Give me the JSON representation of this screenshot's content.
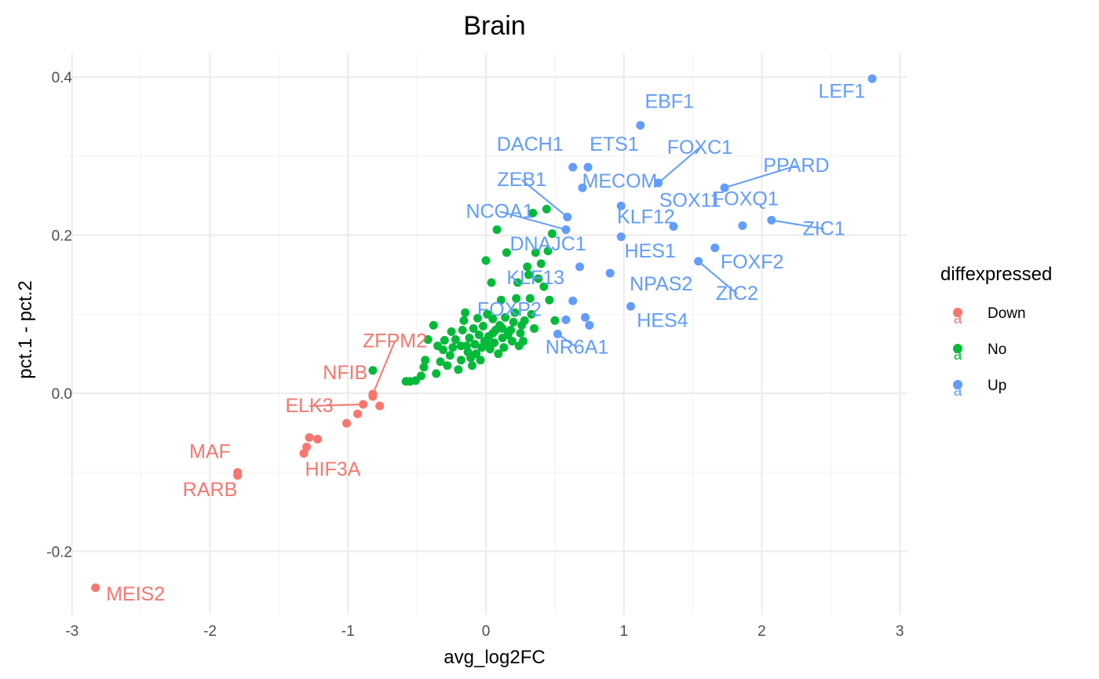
{
  "chart_data": {
    "type": "scatter",
    "title": "Brain",
    "xlabel": "avg_log2FC",
    "ylabel": "pct.1 - pct.2",
    "xlim": [
      -3.05,
      3.05
    ],
    "ylim": [
      -0.28,
      0.43
    ],
    "x_ticks": [
      -3,
      -2,
      -1,
      0,
      1,
      2,
      3
    ],
    "y_ticks": [
      -0.2,
      0.0,
      0.2,
      0.4
    ],
    "x_tick_labels": [
      "-3",
      "-2",
      "-1",
      "0",
      "1",
      "2",
      "3"
    ],
    "y_tick_labels": [
      "-0.2",
      "0.0",
      "0.2",
      "0.4"
    ],
    "grid": true,
    "legend": {
      "title": "diffexpressed",
      "position": "right",
      "entries": [
        {
          "key": "Down",
          "label": "Down",
          "color": "#F8766D"
        },
        {
          "key": "No",
          "label": "No",
          "color": "#00BA38"
        },
        {
          "key": "Up",
          "label": "Up",
          "color": "#619CFF"
        }
      ]
    },
    "series": [
      {
        "name": "Down",
        "color": "#F8766D",
        "points": [
          [
            -2.83,
            -0.246
          ],
          [
            -1.8,
            -0.1
          ],
          [
            -1.8,
            -0.104
          ],
          [
            -1.32,
            -0.076
          ],
          [
            -1.3,
            -0.068
          ],
          [
            -1.28,
            -0.056
          ],
          [
            -1.22,
            -0.058
          ],
          [
            -1.01,
            -0.038
          ],
          [
            -0.93,
            -0.026
          ],
          [
            -0.89,
            -0.014
          ],
          [
            -0.82,
            -0.004
          ],
          [
            -0.82,
            -0.001
          ],
          [
            -0.77,
            -0.016
          ]
        ]
      },
      {
        "name": "No",
        "color": "#00BA38",
        "points": [
          [
            -0.55,
            0.015
          ],
          [
            -0.51,
            0.016
          ],
          [
            -0.47,
            0.022
          ],
          [
            -0.45,
            0.033
          ],
          [
            -0.44,
            0.042
          ],
          [
            -0.42,
            0.068
          ],
          [
            -0.38,
            0.086
          ],
          [
            -0.36,
            0.025
          ],
          [
            -0.33,
            0.04
          ],
          [
            -0.31,
            0.055
          ],
          [
            -0.3,
            0.067
          ],
          [
            -0.28,
            0.035
          ],
          [
            -0.26,
            0.048
          ],
          [
            -0.24,
            0.058
          ],
          [
            -0.22,
            0.068
          ],
          [
            -0.2,
            0.03
          ],
          [
            -0.18,
            0.042
          ],
          [
            -0.17,
            0.08
          ],
          [
            -0.16,
            0.092
          ],
          [
            -0.15,
            0.102
          ],
          [
            -0.14,
            0.06
          ],
          [
            -0.13,
            0.052
          ],
          [
            -0.12,
            0.07
          ],
          [
            -0.11,
            0.045
          ],
          [
            -0.1,
            0.035
          ],
          [
            -0.09,
            0.082
          ],
          [
            -0.08,
            0.062
          ],
          [
            -0.07,
            0.05
          ],
          [
            -0.06,
            0.095
          ],
          [
            -0.05,
            0.074
          ],
          [
            -0.04,
            0.042
          ],
          [
            -0.03,
            0.058
          ],
          [
            -0.02,
            0.085
          ],
          [
            -0.01,
            0.066
          ],
          [
            0.0,
            0.168
          ],
          [
            0.01,
            0.1
          ],
          [
            0.02,
            0.072
          ],
          [
            0.03,
            0.056
          ],
          [
            0.04,
            0.14
          ],
          [
            0.05,
            0.094
          ],
          [
            0.06,
            0.064
          ],
          [
            0.07,
            0.08
          ],
          [
            0.08,
            0.207
          ],
          [
            0.09,
            0.05
          ],
          [
            0.1,
            0.086
          ],
          [
            0.11,
            0.118
          ],
          [
            0.12,
            0.07
          ],
          [
            0.13,
            0.058
          ],
          [
            0.14,
            0.096
          ],
          [
            0.15,
            0.178
          ],
          [
            0.16,
            0.074
          ],
          [
            0.18,
            0.08
          ],
          [
            0.19,
            0.066
          ],
          [
            0.2,
            0.09
          ],
          [
            0.21,
            0.102
          ],
          [
            0.22,
            0.12
          ],
          [
            0.23,
            0.14
          ],
          [
            0.24,
            0.06
          ],
          [
            0.25,
            0.076
          ],
          [
            0.26,
            0.086
          ],
          [
            0.28,
            0.092
          ],
          [
            0.3,
            0.16
          ],
          [
            0.31,
            0.15
          ],
          [
            0.32,
            0.12
          ],
          [
            0.33,
            0.1
          ],
          [
            0.34,
            0.228
          ],
          [
            0.35,
            0.082
          ],
          [
            0.36,
            0.178
          ],
          [
            0.38,
            0.145
          ],
          [
            0.4,
            0.164
          ],
          [
            0.42,
            0.135
          ],
          [
            0.44,
            0.233
          ],
          [
            0.45,
            0.18
          ],
          [
            0.46,
            0.118
          ],
          [
            0.48,
            0.202
          ],
          [
            0.5,
            0.092
          ],
          [
            -0.82,
            0.029
          ],
          [
            -0.58,
            0.015
          ],
          [
            -0.35,
            0.06
          ],
          [
            -0.25,
            0.078
          ],
          [
            -0.18,
            0.06
          ],
          [
            0.0,
            0.064
          ],
          [
            0.05,
            0.076
          ],
          [
            0.12,
            0.082
          ],
          [
            0.27,
            0.066
          ]
        ]
      },
      {
        "name": "Up",
        "color": "#619CFF",
        "points": [
          [
            2.8,
            0.398
          ],
          [
            1.12,
            0.339
          ],
          [
            0.63,
            0.286
          ],
          [
            0.74,
            0.286
          ],
          [
            1.25,
            0.266
          ],
          [
            1.73,
            0.26
          ],
          [
            0.7,
            0.26
          ],
          [
            0.98,
            0.237
          ],
          [
            0.59,
            0.223
          ],
          [
            0.58,
            0.207
          ],
          [
            2.07,
            0.219
          ],
          [
            1.36,
            0.211
          ],
          [
            1.86,
            0.212
          ],
          [
            0.98,
            0.198
          ],
          [
            1.66,
            0.184
          ],
          [
            1.54,
            0.167
          ],
          [
            0.68,
            0.16
          ],
          [
            0.9,
            0.152
          ],
          [
            0.63,
            0.117
          ],
          [
            1.05,
            0.11
          ],
          [
            0.58,
            0.093
          ],
          [
            0.72,
            0.096
          ],
          [
            0.75,
            0.086
          ],
          [
            0.52,
            0.075
          ]
        ]
      }
    ],
    "annotations": [
      {
        "text": "LEF1",
        "series": "Up",
        "x": 2.8,
        "y": 0.398,
        "lx": 2.58,
        "ly": 0.374
      },
      {
        "text": "EBF1",
        "series": "Up",
        "x": 1.12,
        "y": 0.339,
        "lx": 1.33,
        "ly": 0.361
      },
      {
        "text": "DACH1",
        "series": "Up",
        "x": 0.63,
        "y": 0.286,
        "lx": 0.32,
        "ly": 0.307
      },
      {
        "text": "ETS1",
        "series": "Up",
        "x": 0.74,
        "y": 0.286,
        "lx": 0.93,
        "ly": 0.307
      },
      {
        "text": "FOXC1",
        "series": "Up",
        "x": 1.25,
        "y": 0.266,
        "lx": 1.55,
        "ly": 0.303,
        "line": true
      },
      {
        "text": "PPARD",
        "series": "Up",
        "x": 1.73,
        "y": 0.26,
        "lx": 2.25,
        "ly": 0.28,
        "line": true
      },
      {
        "text": "ZEB1",
        "series": "Up",
        "x": 0.59,
        "y": 0.223,
        "lx": 0.26,
        "ly": 0.262,
        "line": true
      },
      {
        "text": "MECOM",
        "series": "Up",
        "x": 0.7,
        "y": 0.26,
        "lx": 0.97,
        "ly": 0.26
      },
      {
        "text": "SOX11",
        "series": "Up",
        "x": 1.36,
        "y": 0.211,
        "lx": 1.48,
        "ly": 0.236
      },
      {
        "text": "FOXQ1",
        "series": "Up",
        "x": 1.86,
        "y": 0.212,
        "lx": 1.88,
        "ly": 0.238
      },
      {
        "text": "NCOA1",
        "series": "Up",
        "x": 0.58,
        "y": 0.207,
        "lx": 0.1,
        "ly": 0.222,
        "line": true
      },
      {
        "text": "KLF12",
        "series": "Up",
        "x": 0.98,
        "y": 0.198,
        "lx": 1.16,
        "ly": 0.215
      },
      {
        "text": "ZIC1",
        "series": "Up",
        "x": 2.07,
        "y": 0.219,
        "lx": 2.45,
        "ly": 0.2,
        "line": true
      },
      {
        "text": "DNAJC1",
        "series": "Up",
        "x": 0.68,
        "y": 0.16,
        "lx": 0.45,
        "ly": 0.181
      },
      {
        "text": "HES1",
        "series": "Up",
        "x": 0.9,
        "y": 0.152,
        "lx": 1.19,
        "ly": 0.172
      },
      {
        "text": "FOXF2",
        "series": "Up",
        "x": 1.66,
        "y": 0.184,
        "lx": 1.93,
        "ly": 0.158
      },
      {
        "text": "KLF13",
        "series": "Up",
        "x": 0.63,
        "y": 0.117,
        "lx": 0.36,
        "ly": 0.138
      },
      {
        "text": "NPAS2",
        "series": "Up",
        "x": 1.05,
        "y": 0.11,
        "lx": 1.27,
        "ly": 0.13
      },
      {
        "text": "ZIC2",
        "series": "Up",
        "x": 1.54,
        "y": 0.167,
        "lx": 1.82,
        "ly": 0.118,
        "line": true
      },
      {
        "text": "FOXP2",
        "series": "Up",
        "x": 0.58,
        "y": 0.093,
        "lx": 0.17,
        "ly": 0.098
      },
      {
        "text": "HES4",
        "series": "Up",
        "x": 0.72,
        "y": 0.096,
        "lx": 1.28,
        "ly": 0.084
      },
      {
        "text": "NR6A1",
        "series": "Up",
        "x": 0.52,
        "y": 0.075,
        "lx": 0.66,
        "ly": 0.05,
        "line": true
      },
      {
        "text": "ZFPM2",
        "series": "Down",
        "x": -0.82,
        "y": -0.001,
        "lx": -0.66,
        "ly": 0.058,
        "line": true
      },
      {
        "text": "NFIB",
        "series": "Down",
        "x": -0.82,
        "y": -0.004,
        "lx": -1.02,
        "ly": 0.018
      },
      {
        "text": "ELK3",
        "series": "Down",
        "x": -0.89,
        "y": -0.014,
        "lx": -1.28,
        "ly": -0.024,
        "line": true
      },
      {
        "text": "MAF",
        "series": "Down",
        "x": -1.8,
        "y": -0.1,
        "lx": -2.0,
        "ly": -0.082
      },
      {
        "text": "HIF3A",
        "series": "Down",
        "x": -1.3,
        "y": -0.068,
        "lx": -1.11,
        "ly": -0.104
      },
      {
        "text": "RARB",
        "series": "Down",
        "x": -1.8,
        "y": -0.104,
        "lx": -2.0,
        "ly": -0.13
      },
      {
        "text": "MEIS2",
        "series": "Down",
        "x": -2.83,
        "y": -0.246,
        "lx": -2.54,
        "ly": -0.262
      }
    ]
  }
}
